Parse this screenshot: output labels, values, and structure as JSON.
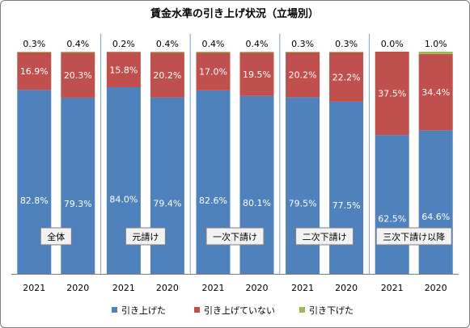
{
  "chart_data": {
    "type": "bar",
    "stacked": true,
    "title": "賃金水準の引き上げ状況（立場別）",
    "ylim": [
      0,
      100
    ],
    "grid": false,
    "legend_position": "bottom",
    "groups": [
      {
        "label": "全体",
        "categories": [
          "2021",
          "2020"
        ],
        "labels": [
          "2021",
          "2020"
        ]
      },
      {
        "label": "元請け",
        "categories": [
          "2021",
          "2020"
        ],
        "labels": [
          "2021",
          "2020"
        ]
      },
      {
        "label": "一次下請け",
        "categories": [
          "2021",
          "2020"
        ],
        "labels": [
          "2021",
          "2020"
        ]
      },
      {
        "label": "二次下請け",
        "categories": [
          "2021",
          "2020"
        ],
        "labels": [
          "2021",
          "2020"
        ]
      },
      {
        "label": "三次下請け以降",
        "categories": [
          "2021",
          "2020"
        ],
        "labels": [
          "2021",
          "2020"
        ]
      }
    ],
    "series": [
      {
        "name": "引き上げた",
        "color": "#4f81bd",
        "values": [
          82.8,
          79.3,
          84.0,
          79.4,
          82.6,
          80.1,
          79.5,
          77.5,
          62.5,
          64.6
        ],
        "labels": [
          "82.8%",
          "79.3%",
          "84.0%",
          "79.4%",
          "82.6%",
          "80.1%",
          "79.5%",
          "77.5%",
          "62.5%",
          "64.6%"
        ]
      },
      {
        "name": "引き上げていない",
        "color": "#c0504d",
        "values": [
          16.9,
          20.3,
          15.8,
          20.2,
          17.0,
          19.5,
          20.2,
          22.2,
          37.5,
          34.4
        ],
        "labels": [
          "16.9%",
          "20.3%",
          "15.8%",
          "20.2%",
          "17.0%",
          "19.5%",
          "20.2%",
          "22.2%",
          "37.5%",
          "34.4%"
        ]
      },
      {
        "name": "引き下げた",
        "color": "#9bbb59",
        "values": [
          0.3,
          0.4,
          0.2,
          0.4,
          0.4,
          0.4,
          0.3,
          0.3,
          0.0,
          1.0
        ],
        "labels": [
          "0.3%",
          "0.4%",
          "0.2%",
          "0.4%",
          "0.4%",
          "0.4%",
          "0.3%",
          "0.3%",
          "0.0%",
          "1.0%"
        ]
      }
    ]
  }
}
